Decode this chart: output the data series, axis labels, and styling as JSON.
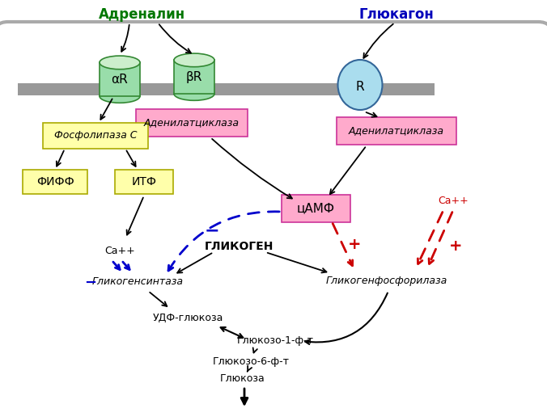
{
  "adrenalin_label": "Адреналин",
  "adrenalin_color": "#007700",
  "glucagon_label": "Глюкагон",
  "glucagon_color": "#0000bb",
  "receptor_fill": "#99ddaa",
  "receptor_border": "#338833",
  "receptor_R_fill": "#aaddee",
  "receptor_R_border": "#336699",
  "fosfolipaza_label": "Фосфолипаза C",
  "fosfolipaza_fill": "#ffffaa",
  "fosfolipaza_border": "#aaaa00",
  "adenilat_label": "Аденилатциклаза",
  "adenilat_fill": "#ffaacc",
  "adenilat_border": "#cc3399",
  "fiff_label": "ФИФФ",
  "itf_label": "ИТФ",
  "yellow_fill": "#ffffaa",
  "yellow_border": "#aaaa00",
  "camf_label": "цАМФ",
  "camf_fill": "#ffaacc",
  "camf_border": "#cc3399",
  "glikogen_label": "ГЛИКОГЕН",
  "glikogensintaza_label": "Гликогенсинтаза",
  "glikogenfosforilaза_label": "Гликогенфосфорилаза",
  "udf_label": "УДФ-глюкоза",
  "glukoso1_label": "Глюкозо-1-ф-т",
  "glukoso6_label": "Глюкозо-6-ф-т",
  "glukoza_label": "Глюкоза",
  "ca_label": "Ca++",
  "blue_color": "#0000cc",
  "red_color": "#cc0000",
  "black": "#000000",
  "gray_cell": "#aaaaaa",
  "membrane_color": "#999999"
}
